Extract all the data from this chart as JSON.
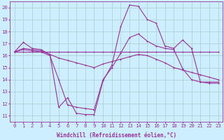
{
  "xlabel": "Windchill (Refroidissement éolien,°C)",
  "background_color": "#cceeff",
  "line_color": "#993399",
  "grid_color": "#aacccc",
  "xlim": [
    -0.5,
    23.5
  ],
  "ylim": [
    10.5,
    20.5
  ],
  "xticks": [
    0,
    1,
    2,
    3,
    4,
    5,
    6,
    7,
    8,
    9,
    10,
    11,
    12,
    13,
    14,
    15,
    16,
    17,
    18,
    19,
    20,
    21,
    22,
    23
  ],
  "yticks": [
    11,
    12,
    13,
    14,
    15,
    16,
    17,
    18,
    19,
    20
  ],
  "series": [
    [
      16.3,
      17.1,
      16.6,
      16.5,
      16.1,
      11.7,
      12.5,
      11.2,
      11.1,
      11.1,
      13.9,
      15.2,
      18.4,
      20.2,
      20.1,
      19.0,
      18.7,
      16.8,
      16.6,
      17.3,
      16.6,
      13.8,
      13.8,
      13.8
    ],
    [
      16.3,
      16.6,
      16.5,
      16.4,
      16.1,
      15.8,
      15.6,
      15.4,
      15.2,
      15.0,
      15.3,
      15.5,
      15.7,
      15.9,
      16.1,
      16.0,
      15.7,
      15.4,
      15.0,
      14.8,
      14.6,
      14.4,
      14.2,
      14.0
    ],
    [
      16.3,
      16.3,
      16.3,
      16.3,
      16.3,
      16.3,
      16.3,
      16.3,
      16.3,
      16.3,
      16.3,
      16.3,
      16.3,
      16.3,
      16.3,
      16.3,
      16.3,
      16.3,
      16.3,
      16.3,
      16.3,
      16.3,
      16.3,
      16.3
    ],
    [
      16.3,
      16.5,
      16.4,
      16.3,
      16.0,
      14.0,
      11.9,
      11.7,
      11.6,
      11.5,
      14.0,
      15.0,
      16.2,
      17.5,
      17.8,
      17.2,
      16.8,
      16.6,
      16.5,
      14.9,
      14.0,
      13.8,
      13.7,
      13.7
    ]
  ],
  "tick_fontsize": 5.2,
  "xlabel_fontsize": 5.5,
  "marker_size": 2.0,
  "line_width": 0.8
}
